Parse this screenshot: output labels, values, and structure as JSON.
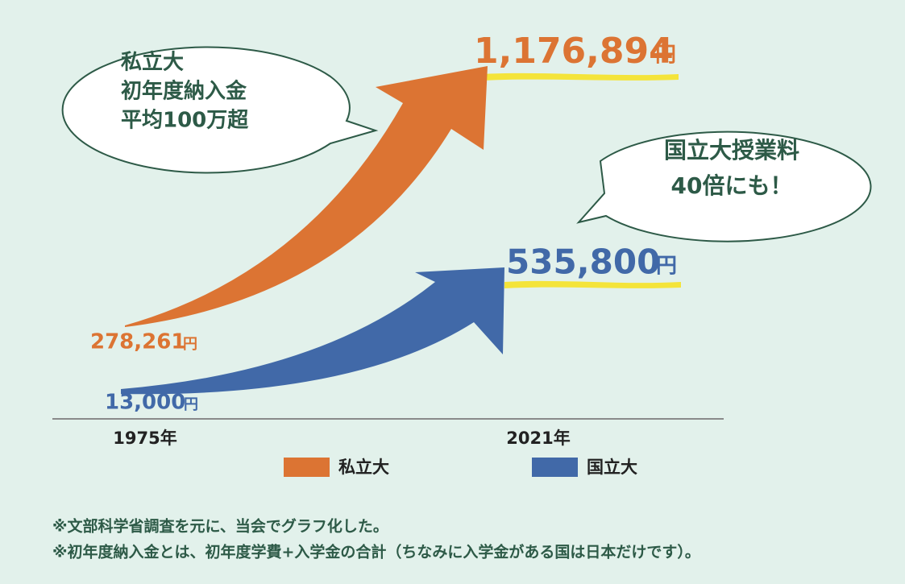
{
  "chart_data": {
    "type": "arrow",
    "categories": [
      "1975年",
      "2021年"
    ],
    "unit": "円",
    "series": [
      {
        "name": "私立大",
        "color": "#dc7433",
        "values": [
          278261,
          1176894
        ],
        "value_labels": [
          "278,261",
          "1,176,894"
        ]
      },
      {
        "name": "国立大",
        "color": "#4169a8",
        "values": [
          13000,
          535800
        ],
        "value_labels": [
          "13,000",
          "535,800"
        ]
      }
    ],
    "callouts": [
      {
        "lines": [
          "私立大",
          "初年度納入金",
          "平均100万超"
        ]
      },
      {
        "lines": [
          "国立大授業料",
          "40倍にも！"
        ]
      }
    ],
    "notes": [
      "※文部科学省調査を元に、当会でグラフ化した。",
      "※初年度納入金とは、初年度学費+入学金の合計（ちなみに入学金がある国は日本だけです）。"
    ]
  }
}
